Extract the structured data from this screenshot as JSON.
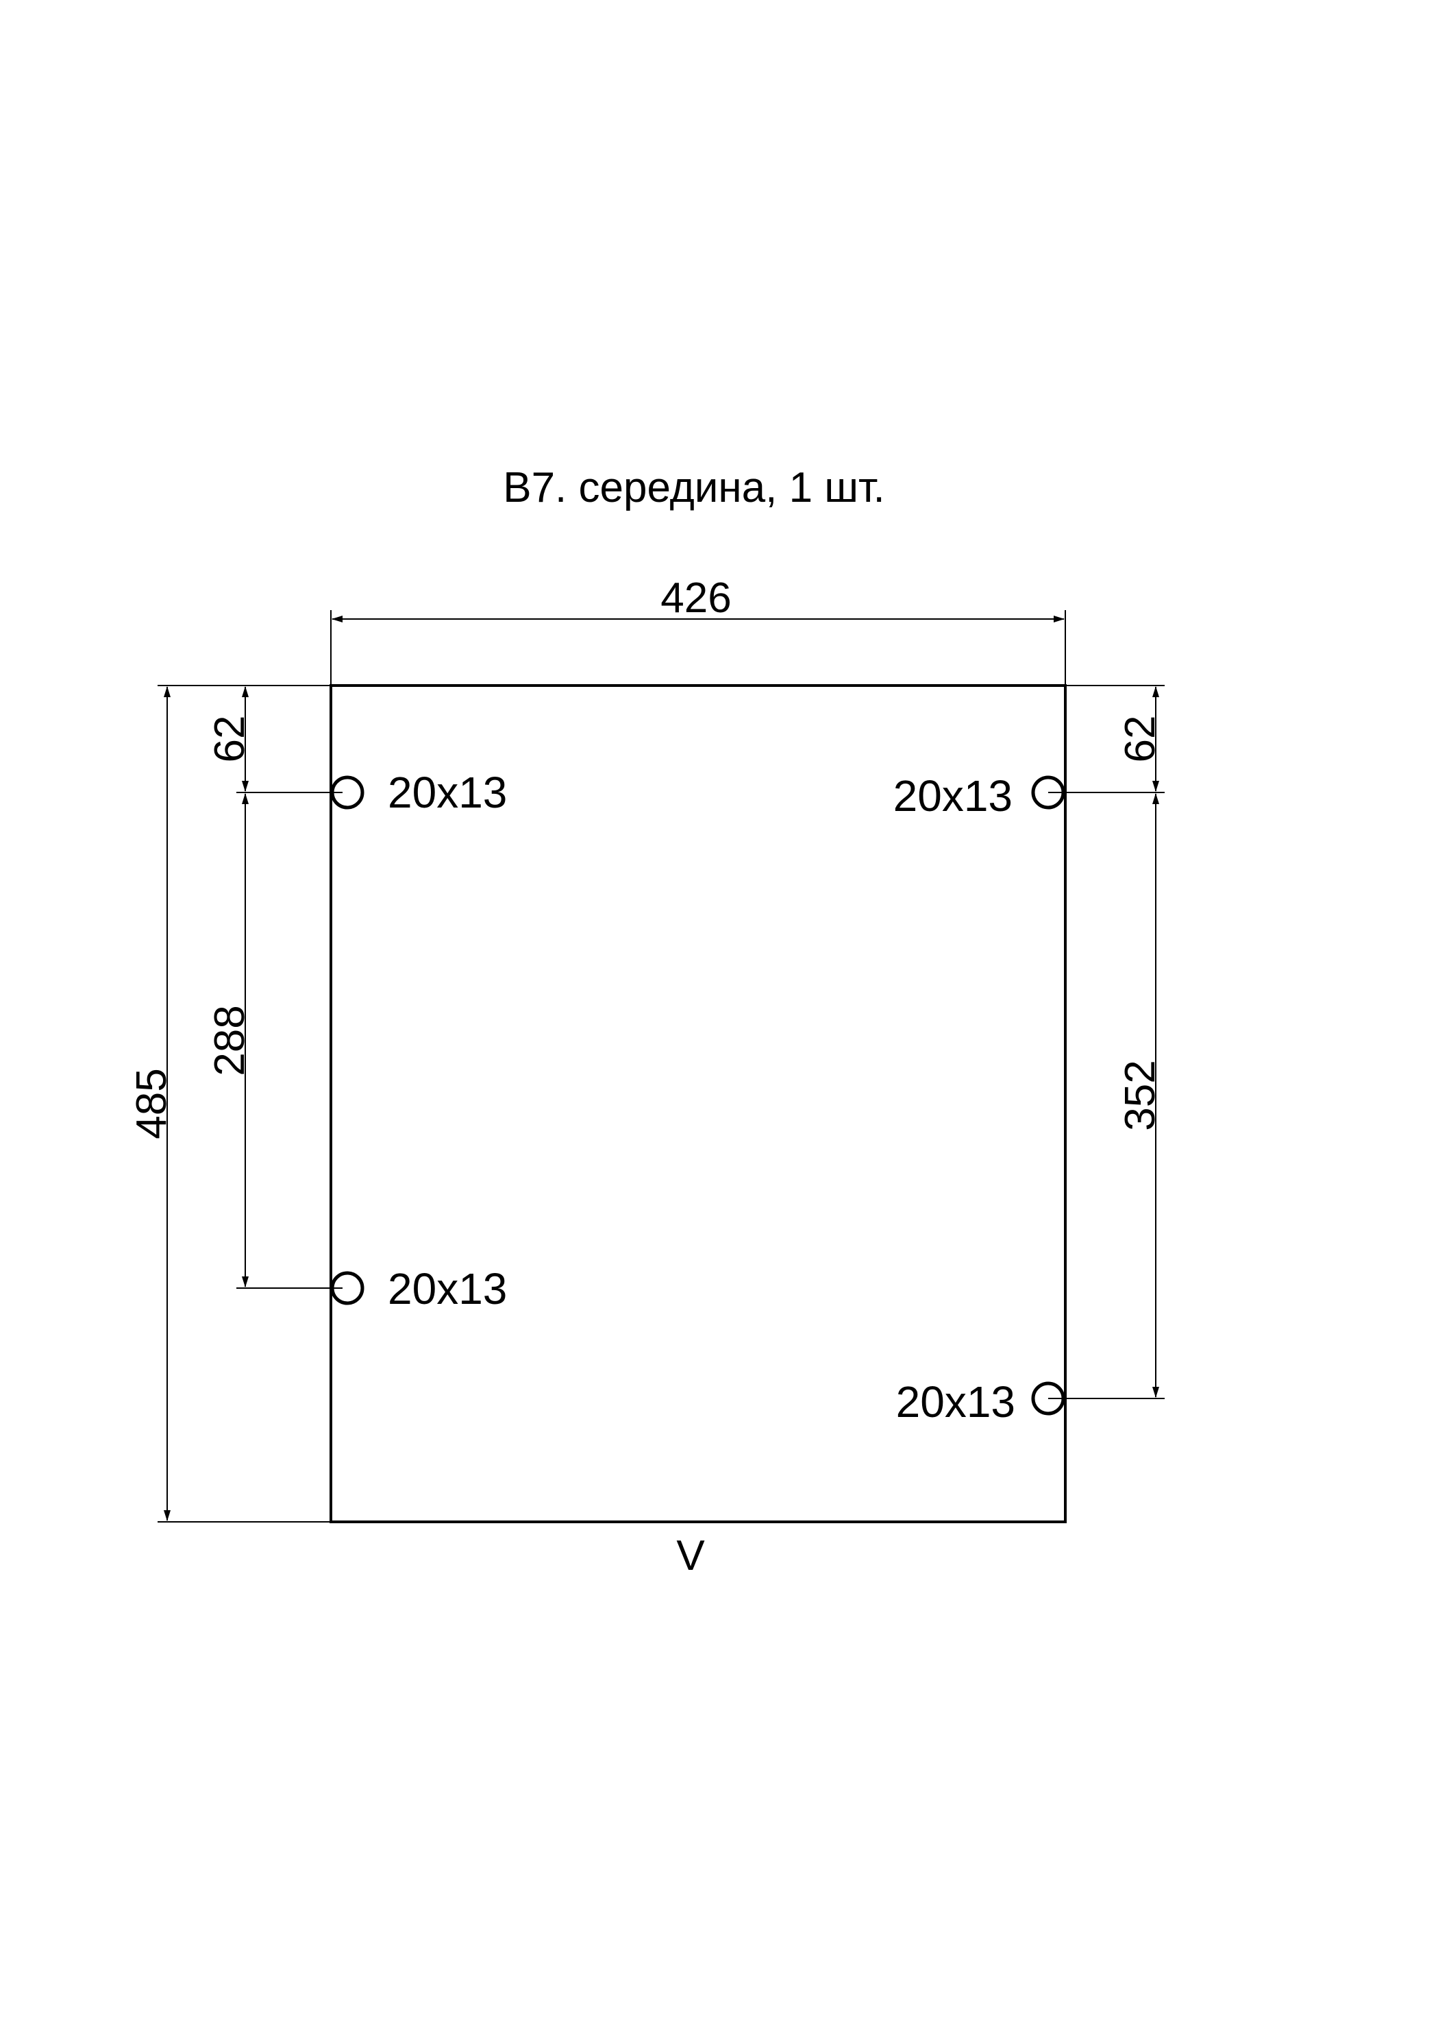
{
  "title": "В7. середина, 1 шт.",
  "dimensions": {
    "width": "426",
    "height": "485",
    "left_top_offset": "62",
    "left_spacing": "288",
    "right_top_offset": "62",
    "right_spacing": "352"
  },
  "holes": [
    {
      "label": "20x13"
    },
    {
      "label": "20x13"
    },
    {
      "label": "20x13"
    },
    {
      "label": "20x13"
    }
  ],
  "bottom_mark": "V",
  "colors": {
    "line": "#000000",
    "background": "#ffffff"
  }
}
